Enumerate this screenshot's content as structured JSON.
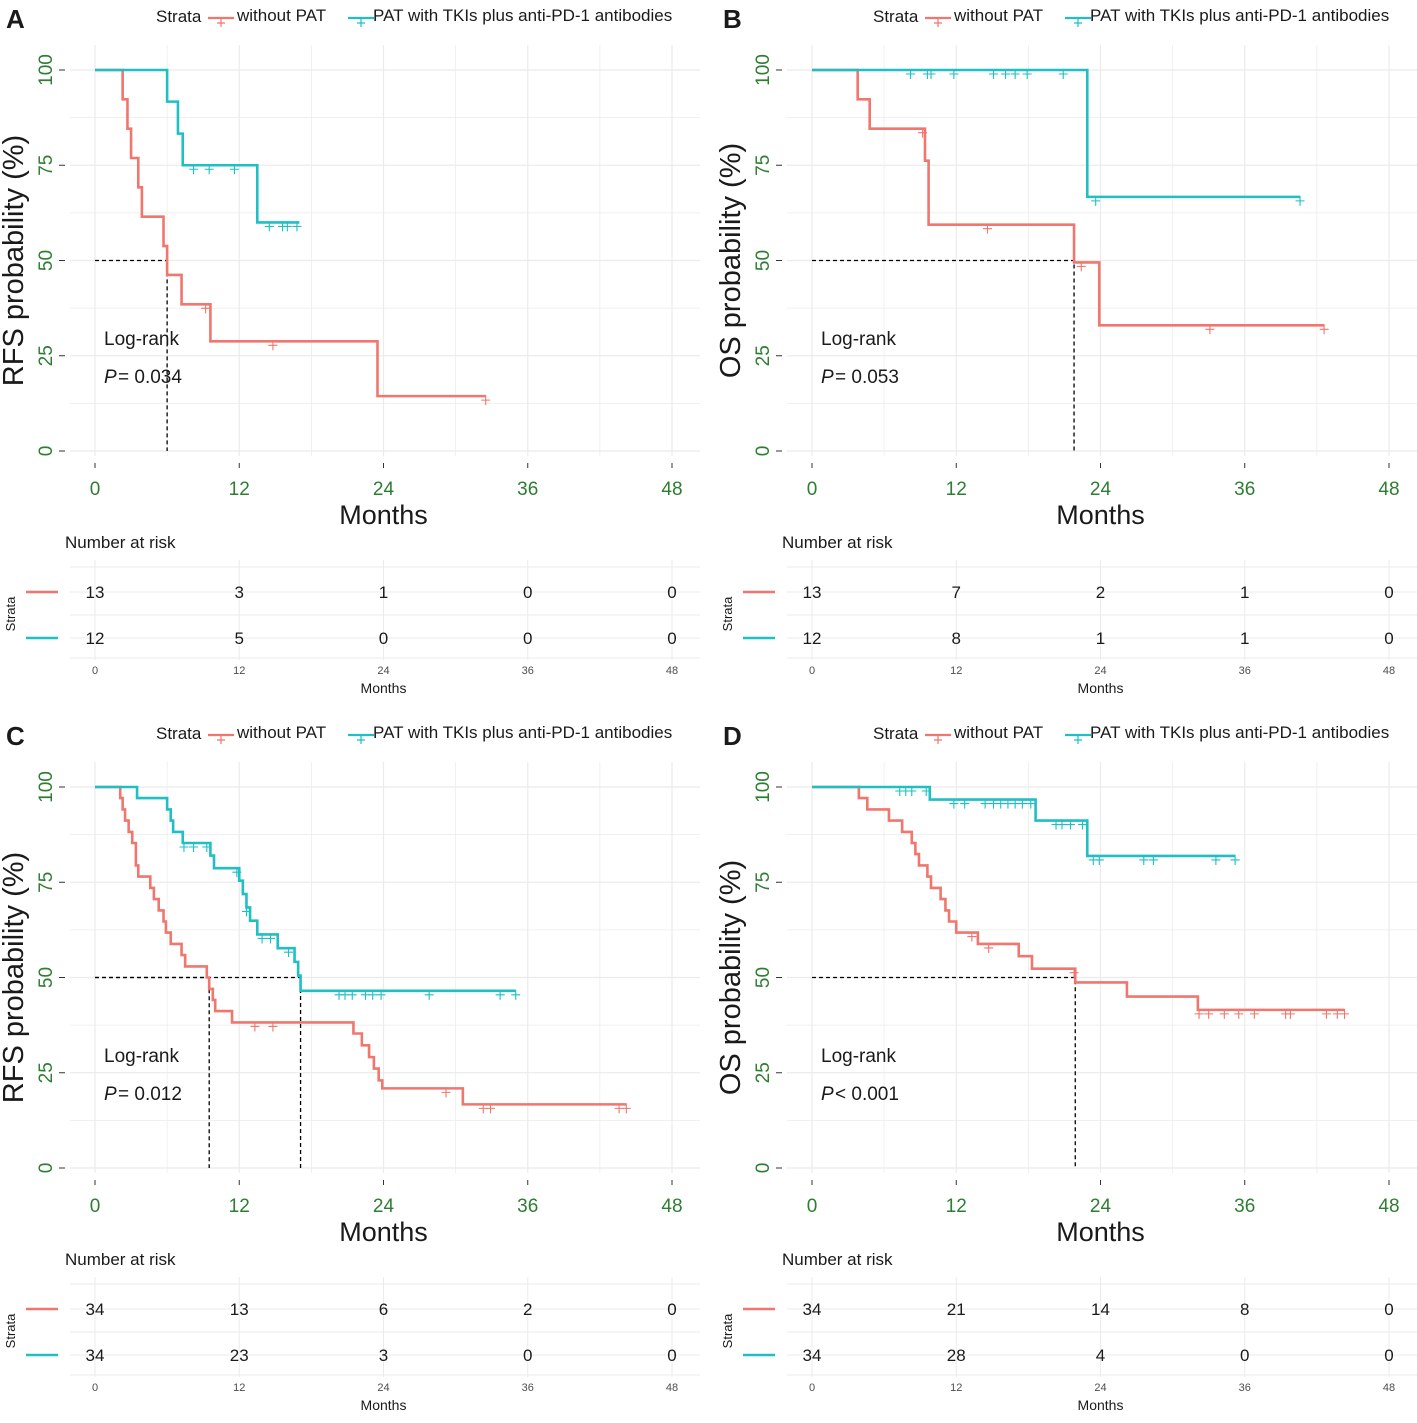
{
  "colors": {
    "without_pat": "#F0766E",
    "pat": "#1FBFC4",
    "axis_text": "#2E7D32",
    "grid": "#EBEBEB",
    "text": "#1A1A1A"
  },
  "chart_data": [
    {
      "panel_letter": "A",
      "type": "line",
      "subtype": "kaplan-meier",
      "legend_title": "Strata",
      "legend_labels": [
        "without PAT",
        "PAT with TKIs plus anti-PD-1 antibodies"
      ],
      "ylabel": "RFS probability (%)",
      "xlabel": "Months",
      "xticks": [
        "0",
        "12",
        "24",
        "36",
        "48"
      ],
      "yticks": [
        "0",
        "25",
        "50",
        "75",
        "100"
      ],
      "xlim": [
        0,
        48
      ],
      "ylim": [
        0,
        100
      ],
      "annotation_line1": "Log-rank",
      "annotation_p_symbol": "P",
      "annotation_p_value": "= 0.034",
      "median_lines": [
        6
      ],
      "series": [
        {
          "name": "without PAT",
          "steps": [
            [
              0,
              100
            ],
            [
              2.3,
              92.3
            ],
            [
              2.7,
              84.6
            ],
            [
              3.0,
              76.9
            ],
            [
              3.6,
              69.2
            ],
            [
              3.9,
              61.5
            ],
            [
              5.7,
              53.8
            ],
            [
              6.0,
              46.2
            ],
            [
              7.2,
              38.5
            ],
            [
              9.6,
              28.8
            ],
            [
              23.5,
              14.4
            ],
            [
              32.5,
              14.4
            ]
          ],
          "censored": [
            [
              9.2,
              38.5
            ],
            [
              14.8,
              28.8
            ],
            [
              32.5,
              14.4
            ]
          ]
        },
        {
          "name": "PAT with TKIs plus anti-PD-1 antibodies",
          "steps": [
            [
              0,
              100
            ],
            [
              6.0,
              91.7
            ],
            [
              6.9,
              83.3
            ],
            [
              7.3,
              75.0
            ],
            [
              13.5,
              60.0
            ],
            [
              17.0,
              60.0
            ]
          ],
          "censored": [
            [
              8.2,
              75.0
            ],
            [
              9.5,
              75.0
            ],
            [
              11.6,
              75.0
            ],
            [
              14.5,
              60.0
            ],
            [
              15.6,
              60.0
            ],
            [
              16.0,
              60.0
            ],
            [
              16.8,
              60.0
            ]
          ]
        }
      ],
      "risk_table": {
        "title": "Number at risk",
        "strata_label": "Strata",
        "xlabel": "Months",
        "xticks": [
          "0",
          "12",
          "24",
          "36",
          "48"
        ],
        "rows": [
          {
            "name": "without PAT",
            "counts": [
              "13",
              "3",
              "1",
              "0",
              "0"
            ]
          },
          {
            "name": "PAT with TKIs plus anti-PD-1 antibodies",
            "counts": [
              "12",
              "5",
              "0",
              "0",
              "0"
            ]
          }
        ]
      }
    },
    {
      "panel_letter": "B",
      "type": "line",
      "subtype": "kaplan-meier",
      "legend_title": "Strata",
      "legend_labels": [
        "without PAT",
        "PAT with TKIs plus anti-PD-1 antibodies"
      ],
      "ylabel": "OS probability (%)",
      "xlabel": "Months",
      "xticks": [
        "0",
        "12",
        "24",
        "36",
        "48"
      ],
      "yticks": [
        "0",
        "25",
        "50",
        "75",
        "100"
      ],
      "xlim": [
        0,
        48
      ],
      "ylim": [
        0,
        100
      ],
      "annotation_line1": "Log-rank",
      "annotation_p_symbol": "P",
      "annotation_p_value": "= 0.053",
      "median_lines": [
        21.8
      ],
      "series": [
        {
          "name": "without PAT",
          "steps": [
            [
              0,
              100
            ],
            [
              3.8,
              92.3
            ],
            [
              4.8,
              84.6
            ],
            [
              9.4,
              76.2
            ],
            [
              9.7,
              59.4
            ],
            [
              21.8,
              49.5
            ],
            [
              23.9,
              33.0
            ],
            [
              42.6,
              33.0
            ]
          ],
          "censored": [
            [
              9.2,
              84.6
            ],
            [
              14.6,
              59.4
            ],
            [
              22.4,
              49.5
            ],
            [
              33.1,
              33.0
            ],
            [
              42.6,
              33.0
            ]
          ]
        },
        {
          "name": "PAT with TKIs plus anti-PD-1 antibodies",
          "steps": [
            [
              0,
              100
            ],
            [
              22.9,
              66.7
            ],
            [
              40.6,
              66.7
            ]
          ],
          "censored": [
            [
              8.2,
              100
            ],
            [
              9.6,
              100
            ],
            [
              9.9,
              100
            ],
            [
              11.8,
              100
            ],
            [
              15.1,
              100
            ],
            [
              16.1,
              100
            ],
            [
              16.9,
              100
            ],
            [
              17.9,
              100
            ],
            [
              20.9,
              100
            ],
            [
              23.6,
              66.7
            ],
            [
              40.6,
              66.7
            ]
          ]
        }
      ],
      "risk_table": {
        "title": "Number at risk",
        "strata_label": "Strata",
        "xlabel": "Months",
        "xticks": [
          "0",
          "12",
          "24",
          "36",
          "48"
        ],
        "rows": [
          {
            "name": "without PAT",
            "counts": [
              "13",
              "7",
              "2",
              "1",
              "0"
            ]
          },
          {
            "name": "PAT with TKIs plus anti-PD-1 antibodies",
            "counts": [
              "12",
              "8",
              "1",
              "1",
              "0"
            ]
          }
        ]
      }
    },
    {
      "panel_letter": "C",
      "type": "line",
      "subtype": "kaplan-meier",
      "legend_title": "Strata",
      "legend_labels": [
        "without PAT",
        "PAT with TKIs plus anti-PD-1 antibodies"
      ],
      "ylabel": "RFS probability (%)",
      "xlabel": "Months",
      "xticks": [
        "0",
        "12",
        "24",
        "36",
        "48"
      ],
      "yticks": [
        "0",
        "25",
        "50",
        "75",
        "100"
      ],
      "xlim": [
        0,
        48
      ],
      "ylim": [
        0,
        100
      ],
      "annotation_line1": "Log-rank",
      "annotation_p_symbol": "P",
      "annotation_p_value": "= 0.012",
      "median_lines": [
        9.5,
        17.1
      ],
      "series": [
        {
          "name": "without PAT",
          "steps": [
            [
              0,
              100
            ],
            [
              2.1,
              97.1
            ],
            [
              2.3,
              94.1
            ],
            [
              2.5,
              91.2
            ],
            [
              2.8,
              88.2
            ],
            [
              3.1,
              85.3
            ],
            [
              3.4,
              79.4
            ],
            [
              3.6,
              76.5
            ],
            [
              4.6,
              73.5
            ],
            [
              4.9,
              70.6
            ],
            [
              5.3,
              67.6
            ],
            [
              5.7,
              64.7
            ],
            [
              5.9,
              61.8
            ],
            [
              6.3,
              58.8
            ],
            [
              7.2,
              55.9
            ],
            [
              7.5,
              52.9
            ],
            [
              9.3,
              50.0
            ],
            [
              9.5,
              47.0
            ],
            [
              9.8,
              44.1
            ],
            [
              10.0,
              41.2
            ],
            [
              11.4,
              38.2
            ],
            [
              21.5,
              35.3
            ],
            [
              22.2,
              32.2
            ],
            [
              22.8,
              29.1
            ],
            [
              23.2,
              26.1
            ],
            [
              23.6,
              23.0
            ],
            [
              23.9,
              20.9
            ],
            [
              30.6,
              16.7
            ],
            [
              44.2,
              16.7
            ]
          ],
          "censored": [
            [
              13.3,
              38.2
            ],
            [
              14.8,
              38.2
            ],
            [
              29.2,
              20.9
            ],
            [
              32.3,
              16.7
            ],
            [
              32.9,
              16.7
            ],
            [
              43.6,
              16.7
            ],
            [
              44.2,
              16.7
            ]
          ]
        },
        {
          "name": "PAT with TKIs plus anti-PD-1 antibodies",
          "steps": [
            [
              0,
              100
            ],
            [
              3.5,
              97.1
            ],
            [
              6.0,
              94.1
            ],
            [
              6.3,
              91.2
            ],
            [
              6.5,
              88.2
            ],
            [
              7.3,
              85.3
            ],
            [
              9.6,
              82.0
            ],
            [
              9.9,
              78.7
            ],
            [
              12.0,
              75.4
            ],
            [
              12.3,
              71.9
            ],
            [
              12.6,
              68.4
            ],
            [
              12.9,
              64.9
            ],
            [
              13.5,
              61.3
            ],
            [
              15.2,
              57.7
            ],
            [
              16.6,
              54.1
            ],
            [
              16.9,
              50.5
            ],
            [
              17.1,
              46.5
            ],
            [
              35.0,
              46.5
            ]
          ],
          "censored": [
            [
              7.4,
              85.3
            ],
            [
              8.2,
              85.3
            ],
            [
              9.3,
              85.3
            ],
            [
              11.8,
              78.7
            ],
            [
              12.6,
              68.4
            ],
            [
              13.9,
              61.3
            ],
            [
              14.6,
              61.3
            ],
            [
              16.1,
              57.7
            ],
            [
              20.3,
              46.5
            ],
            [
              20.8,
              46.5
            ],
            [
              21.4,
              46.5
            ],
            [
              22.5,
              46.5
            ],
            [
              23.1,
              46.5
            ],
            [
              23.8,
              46.5
            ],
            [
              27.8,
              46.5
            ],
            [
              33.7,
              46.5
            ],
            [
              35.0,
              46.5
            ]
          ]
        }
      ],
      "risk_table": {
        "title": "Number at risk",
        "strata_label": "Strata",
        "xlabel": "Months",
        "xticks": [
          "0",
          "12",
          "24",
          "36",
          "48"
        ],
        "rows": [
          {
            "name": "without PAT",
            "counts": [
              "34",
              "13",
              "6",
              "2",
              "0"
            ]
          },
          {
            "name": "PAT with TKIs plus anti-PD-1 antibodies",
            "counts": [
              "34",
              "23",
              "3",
              "0",
              "0"
            ]
          }
        ]
      }
    },
    {
      "panel_letter": "D",
      "type": "line",
      "subtype": "kaplan-meier",
      "legend_title": "Strata",
      "legend_labels": [
        "without PAT",
        "PAT with TKIs plus anti-PD-1 antibodies"
      ],
      "ylabel": "OS probability (%)",
      "xlabel": "Months",
      "xticks": [
        "0",
        "12",
        "24",
        "36",
        "48"
      ],
      "yticks": [
        "0",
        "25",
        "50",
        "75",
        "100"
      ],
      "xlim": [
        0,
        48
      ],
      "ylim": [
        0,
        100
      ],
      "annotation_line1": "Log-rank",
      "annotation_p_symbol": "P",
      "annotation_p_value": "< 0.001",
      "median_lines": [
        21.9
      ],
      "series": [
        {
          "name": "without PAT",
          "steps": [
            [
              0,
              100
            ],
            [
              3.9,
              97.1
            ],
            [
              4.6,
              94.1
            ],
            [
              6.4,
              91.2
            ],
            [
              7.5,
              88.2
            ],
            [
              8.3,
              85.3
            ],
            [
              8.6,
              82.4
            ],
            [
              8.9,
              79.4
            ],
            [
              9.6,
              76.5
            ],
            [
              9.9,
              73.5
            ],
            [
              10.7,
              70.6
            ],
            [
              11.1,
              67.6
            ],
            [
              11.4,
              64.7
            ],
            [
              12.0,
              61.8
            ],
            [
              13.8,
              58.8
            ],
            [
              17.2,
              55.6
            ],
            [
              18.3,
              52.3
            ],
            [
              21.9,
              48.7
            ],
            [
              26.2,
              45.0
            ],
            [
              32.1,
              41.5
            ],
            [
              44.3,
              41.5
            ]
          ],
          "censored": [
            [
              13.3,
              61.8
            ],
            [
              14.7,
              58.8
            ],
            [
              21.8,
              52.3
            ],
            [
              32.2,
              41.5
            ],
            [
              33.0,
              41.5
            ],
            [
              34.3,
              41.5
            ],
            [
              35.5,
              41.5
            ],
            [
              36.8,
              41.5
            ],
            [
              39.4,
              41.5
            ],
            [
              39.8,
              41.5
            ],
            [
              42.8,
              41.5
            ],
            [
              43.7,
              41.5
            ],
            [
              44.3,
              41.5
            ]
          ]
        },
        {
          "name": "PAT with TKIs plus anti-PD-1 antibodies",
          "steps": [
            [
              0,
              100
            ],
            [
              9.8,
              96.7
            ],
            [
              18.6,
              91.2
            ],
            [
              22.9,
              81.9
            ],
            [
              35.2,
              81.9
            ]
          ],
          "censored": [
            [
              7.3,
              100
            ],
            [
              7.8,
              100
            ],
            [
              8.3,
              100
            ],
            [
              9.5,
              100
            ],
            [
              11.8,
              96.7
            ],
            [
              12.7,
              96.7
            ],
            [
              14.4,
              96.7
            ],
            [
              15.1,
              96.7
            ],
            [
              15.7,
              96.7
            ],
            [
              16.3,
              96.7
            ],
            [
              16.9,
              96.7
            ],
            [
              17.5,
              96.7
            ],
            [
              18.2,
              96.7
            ],
            [
              20.3,
              91.2
            ],
            [
              20.8,
              91.2
            ],
            [
              21.5,
              91.2
            ],
            [
              22.5,
              91.2
            ],
            [
              23.4,
              81.9
            ],
            [
              23.9,
              81.9
            ],
            [
              27.6,
              81.9
            ],
            [
              28.4,
              81.9
            ],
            [
              33.6,
              81.9
            ],
            [
              35.2,
              81.9
            ]
          ]
        }
      ],
      "risk_table": {
        "title": "Number at risk",
        "strata_label": "Strata",
        "xlabel": "Months",
        "xticks": [
          "0",
          "12",
          "24",
          "36",
          "48"
        ],
        "rows": [
          {
            "name": "without PAT",
            "counts": [
              "34",
              "21",
              "14",
              "8",
              "0"
            ]
          },
          {
            "name": "PAT with TKIs plus anti-PD-1 antibodies",
            "counts": [
              "34",
              "28",
              "4",
              "0",
              "0"
            ]
          }
        ]
      }
    }
  ]
}
